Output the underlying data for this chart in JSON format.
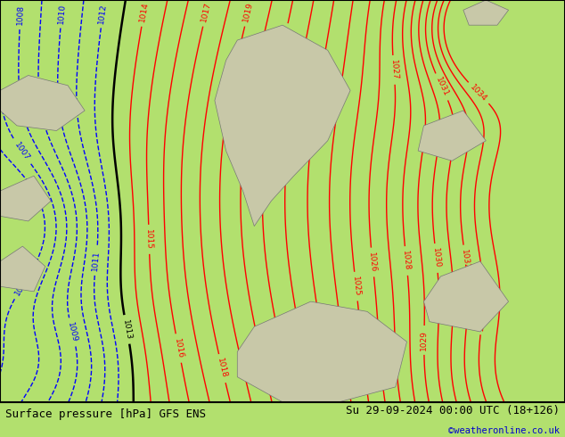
{
  "title_left": "Surface pressure [hPa] GFS ENS",
  "title_right": "Su 29-09-2024 00:00 UTC (18+126)",
  "copyright": "©weatheronline.co.uk",
  "background_color": "#b2e06e",
  "land_color": "#c8c8a8",
  "contour_color_red": "#ff0000",
  "contour_color_blue": "#0000ff",
  "contour_color_black": "#000000",
  "border_color": "#000000",
  "text_color_left": "#000000",
  "text_color_right": "#000000",
  "copyright_color": "#0000cc",
  "figsize": [
    6.34,
    4.9
  ],
  "dpi": 100,
  "bottom_bar_color": "#ffffff"
}
